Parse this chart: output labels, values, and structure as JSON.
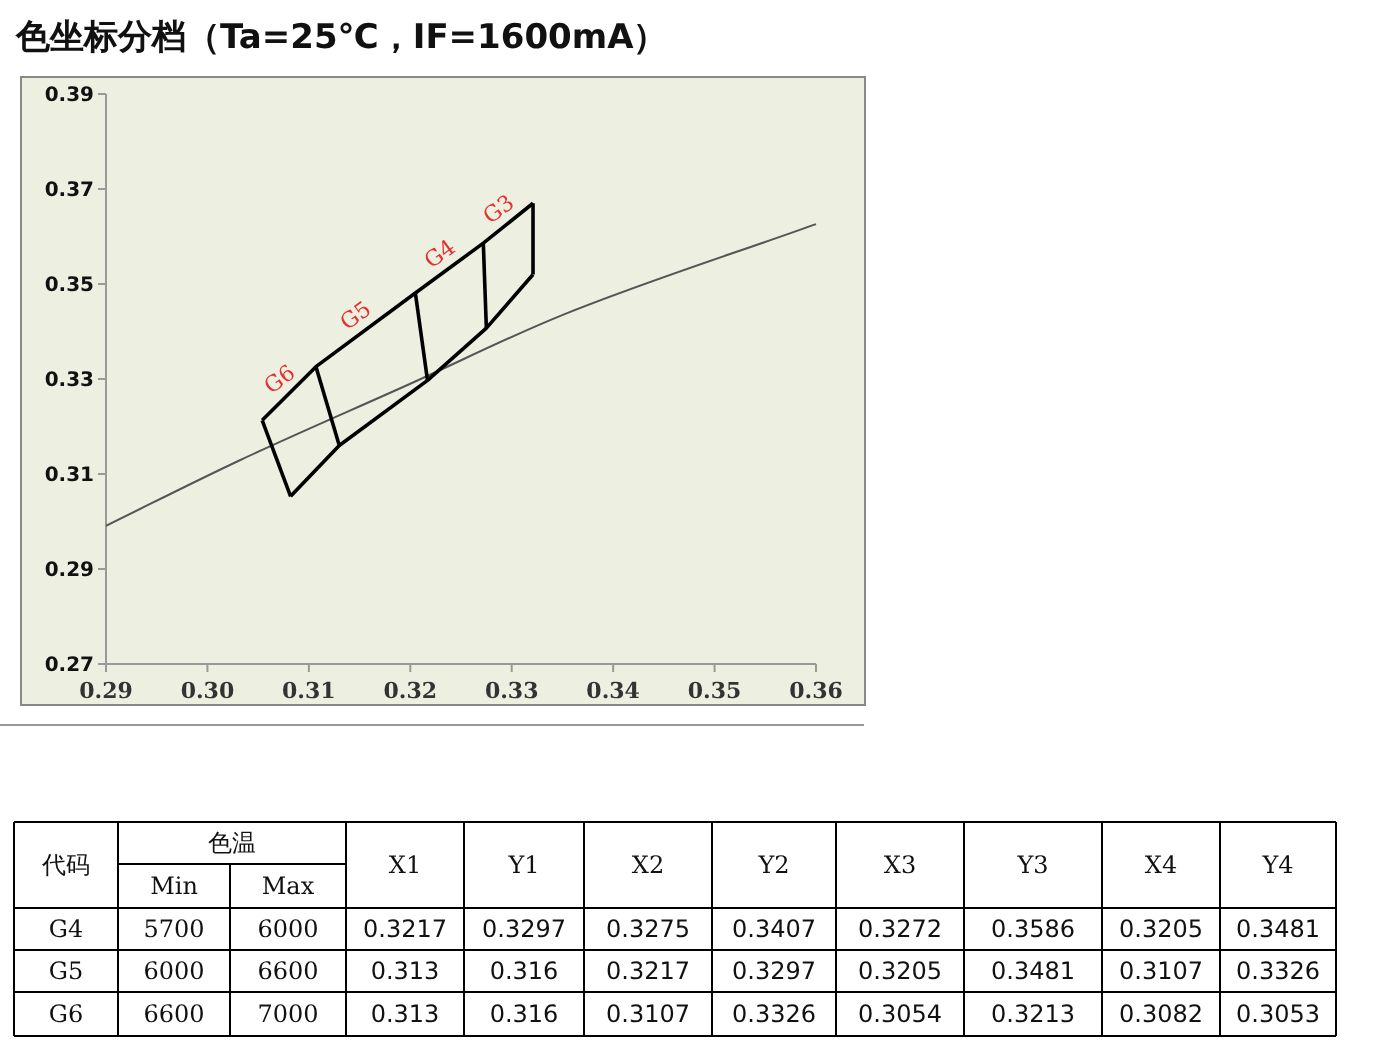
{
  "chart_data": [
    {
      "type": "line",
      "title": "色坐标分档（Ta=25℃，IF=1600mA）",
      "xlim": [
        0.29,
        0.36
      ],
      "ylim": [
        0.27,
        0.39
      ],
      "xticks": [
        {
          "value": 0.29,
          "label": "0.29"
        },
        {
          "value": 0.3,
          "label": "0.30"
        },
        {
          "value": 0.31,
          "label": "0.31"
        },
        {
          "value": 0.32,
          "label": "0.32"
        },
        {
          "value": 0.33,
          "label": "0.33"
        },
        {
          "value": 0.34,
          "label": "0.34"
        },
        {
          "value": 0.35,
          "label": "0.35"
        },
        {
          "value": 0.36,
          "label": "0.36"
        }
      ],
      "yticks": [
        {
          "value": 0.27,
          "label": "0.27"
        },
        {
          "value": 0.29,
          "label": "0.29"
        },
        {
          "value": 0.31,
          "label": "0.31"
        },
        {
          "value": 0.33,
          "label": "0.33"
        },
        {
          "value": 0.35,
          "label": "0.35"
        },
        {
          "value": 0.37,
          "label": "0.37"
        },
        {
          "value": 0.39,
          "label": "0.39"
        }
      ],
      "grid": false,
      "marker": "none",
      "line_style": "solid",
      "series": [
        {
          "color": "#555555",
          "x": [
            0.29,
            0.3032,
            0.32,
            0.3348,
            0.36
          ],
          "values": [
            0.2991,
            0.3129,
            0.329,
            0.3433,
            0.3626
          ]
        },
        {
          "color": "#000000",
          "x": [
            0.3054,
            0.3107,
            0.3205,
            0.3272,
            0.3321
          ],
          "values": [
            0.3213,
            0.3326,
            0.3481,
            0.3586,
            0.367
          ]
        },
        {
          "color": "#000000",
          "x": [
            0.3082,
            0.313,
            0.3217,
            0.3275,
            0.3321
          ],
          "values": [
            0.3053,
            0.316,
            0.3297,
            0.3407,
            0.352
          ]
        },
        {
          "color": "#000000",
          "x": [
            0.3054,
            0.3082
          ],
          "values": [
            0.3213,
            0.3053
          ]
        },
        {
          "color": "#000000",
          "x": [
            0.3107,
            0.313
          ],
          "values": [
            0.3326,
            0.316
          ]
        },
        {
          "color": "#000000",
          "x": [
            0.3205,
            0.3217
          ],
          "values": [
            0.3481,
            0.3297
          ]
        },
        {
          "color": "#000000",
          "x": [
            0.3272,
            0.3275
          ],
          "values": [
            0.3586,
            0.3407
          ]
        },
        {
          "color": "#000000",
          "x": [
            0.3321,
            0.3321
          ],
          "values": [
            0.367,
            0.352
          ]
        }
      ],
      "annotations": [
        {
          "text": "G6",
          "x": 0.3081,
          "y": 0.327
        },
        {
          "text": "G5",
          "x": 0.3156,
          "y": 0.3404
        },
        {
          "text": "G4",
          "x": 0.3239,
          "y": 0.3534
        },
        {
          "text": "G3",
          "x": 0.3297,
          "y": 0.3628
        }
      ]
    },
    {
      "type": "other",
      "annotations": [
        "代码",
        "色温",
        "Min",
        "Max",
        "X1",
        "Y1",
        "X2",
        "Y2",
        "X3",
        "Y3",
        "X4",
        "Y4"
      ],
      "cell_labels": [
        [
          "G4",
          "5700",
          "6000",
          "0.3217",
          "0.3297",
          "0.3275",
          "0.3407",
          "0.3272",
          "0.3586",
          "0.3205",
          "0.3481"
        ],
        [
          "G5",
          "6000",
          "6600",
          "0.313",
          "0.316",
          "0.3217",
          "0.3297",
          "0.3205",
          "0.3481",
          "0.3107",
          "0.3326"
        ],
        [
          "G6",
          "6600",
          "7000",
          "0.313",
          "0.316",
          "0.3107",
          "0.3326",
          "0.3054",
          "0.3213",
          "0.3082",
          "0.3053"
        ]
      ]
    }
  ]
}
